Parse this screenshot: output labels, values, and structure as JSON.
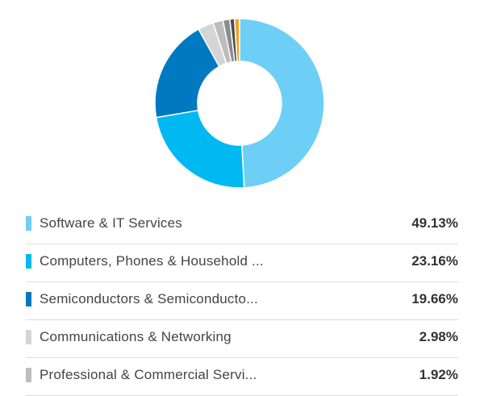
{
  "chart_data": {
    "type": "pie",
    "style": "donut",
    "slices": [
      {
        "label": "Software & IT Services",
        "value": 49.13,
        "value_text": "49.13%",
        "color": "#6dcff6"
      },
      {
        "label": "Computers, Phones & Household ...",
        "value": 23.16,
        "value_text": "23.16%",
        "color": "#00b9f1"
      },
      {
        "label": "Semiconductors & Semiconducto...",
        "value": 19.66,
        "value_text": "19.66%",
        "color": "#0079c1"
      },
      {
        "label": "Communications & Networking",
        "value": 2.98,
        "value_text": "2.98%",
        "color": "#d5d5d5"
      },
      {
        "label": "Professional & Commercial Servi...",
        "value": 1.92,
        "value_text": "1.92%",
        "color": "#bdbdbd"
      },
      {
        "value": 1.3,
        "color": "#8c8c8c"
      },
      {
        "value": 0.9,
        "color": "#4d4d4d"
      },
      {
        "value": 0.95,
        "color": "#f7a21b"
      }
    ]
  }
}
